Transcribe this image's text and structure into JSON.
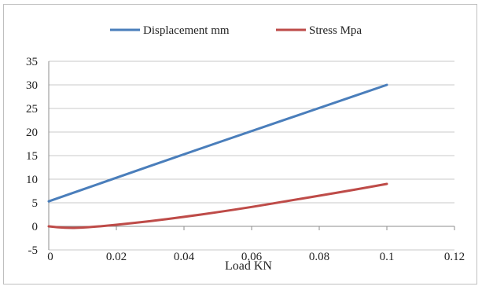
{
  "chart_data": {
    "type": "line",
    "title": "",
    "xlabel": "Load KN",
    "ylabel": "",
    "xlim": [
      0,
      0.12
    ],
    "ylim": [
      -5,
      35
    ],
    "x_ticks": [
      "0",
      "0.02",
      "0.04",
      "0.06",
      "0.08",
      "0.1",
      "0.12"
    ],
    "y_ticks": [
      "35",
      "30",
      "25",
      "20",
      "15",
      "10",
      "5",
      "0",
      "-5"
    ],
    "grid": "horizontal",
    "legend_position": "top",
    "series": [
      {
        "name": "Displacement mm",
        "color": "#4a7ebb",
        "x": [
          0,
          0.02,
          0.04,
          0.06,
          0.08,
          0.1
        ],
        "values": [
          5.3,
          10.3,
          15.3,
          20.2,
          25.1,
          30.0
        ]
      },
      {
        "name": "Stress Mpa",
        "color": "#be4b48",
        "x": [
          0,
          0.005,
          0.01,
          0.02,
          0.03,
          0.04,
          0.05,
          0.06,
          0.07,
          0.08,
          0.09,
          0.1
        ],
        "values": [
          0,
          -0.35,
          -0.3,
          0.3,
          1.1,
          2.0,
          3.0,
          4.1,
          5.3,
          6.5,
          7.7,
          9.0
        ]
      }
    ]
  }
}
